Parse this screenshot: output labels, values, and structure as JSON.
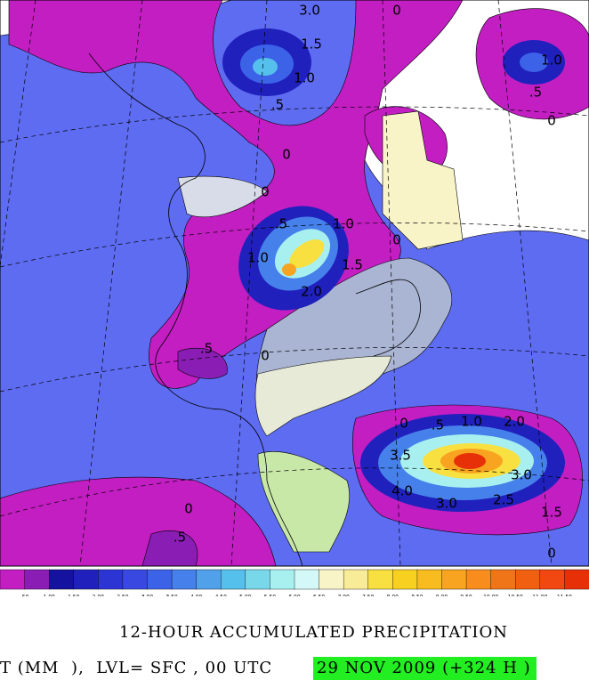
{
  "map": {
    "contour_labels": [
      "3.0",
      "1.5",
      "1.0",
      ".5",
      "0",
      "1.0",
      ".5",
      "0",
      "0",
      "0",
      ".5",
      "1.0",
      "1.0",
      "2.0",
      "1.5",
      "0",
      ".5",
      "0",
      "0",
      ".5",
      "1.0",
      "2.0",
      "3.5",
      "3.0",
      "4.0",
      "3.0",
      "2.5",
      "1.5",
      "0",
      "0",
      ".5"
    ],
    "colorbar": {
      "colors": [
        "#c21ec2",
        "#8a1eb4",
        "#14129e",
        "#2020bc",
        "#2c34d4",
        "#3848e0",
        "#3c62e8",
        "#4680ea",
        "#50a0ea",
        "#56c0ec",
        "#78d8ea",
        "#a8f0f0",
        "#d4f8f8",
        "#f8f4c8",
        "#f8ec98",
        "#f8e040",
        "#f8d020",
        "#f8bc20",
        "#f8a420",
        "#f88c1c",
        "#f07418",
        "#f06010",
        "#f04810",
        "#e83008"
      ],
      "labels": [
        ".50",
        "1.00",
        "1.50",
        "2.00",
        "2.50",
        "3.00",
        "3.50",
        "4.00",
        "4.50",
        "5.00",
        "5.50",
        "6.00",
        "6.50",
        "7.00",
        "7.50",
        "8.00",
        "8.50",
        "9.00",
        "9.50",
        "10.00",
        "10.50",
        "11.00",
        "11.50"
      ]
    },
    "caption": {
      "title": "12-HOUR ACCUMULATED PRECIPITATION",
      "line": "T (MM  ),  LVL= SFC , 00 UTC",
      "valid_time": "29 NOV 2009 (+324 H )"
    }
  }
}
